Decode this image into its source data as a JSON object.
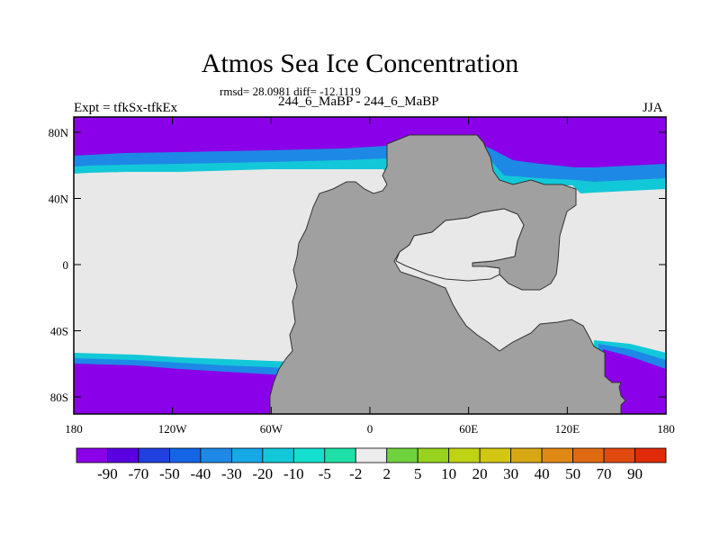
{
  "header": {
    "title": "Atmos Sea Ice Concentration",
    "stats": "rmsd= 28.0981 diff= -12.1119",
    "experiment": "Expt = tfkSx-tfkEx",
    "case": "244_6_MaBP - 244_6_MaBP",
    "season": "JJA"
  },
  "map": {
    "lon_ticks": [
      "180",
      "120W",
      "60W",
      "0",
      "60E",
      "120E",
      "180"
    ],
    "lat_ticks": [
      "80N",
      "40N",
      "0",
      "40S",
      "80S"
    ],
    "colors": {
      "land": "#a0a0a0",
      "neutral": "#e8e8e8",
      "strong_negative": "#8a00e8",
      "mid_negative": "#1e88e6",
      "weak_negative": "#12c8d8"
    }
  },
  "colorbar": {
    "labels": [
      "-90",
      "-70",
      "-50",
      "-40",
      "-30",
      "-20",
      "-10",
      "-5",
      "-2",
      "2",
      "5",
      "10",
      "20",
      "30",
      "40",
      "50",
      "70",
      "90"
    ],
    "colors": [
      "#8a00e8",
      "#5a00e0",
      "#2040e0",
      "#1466e6",
      "#1e88e6",
      "#17a8e6",
      "#12c8d8",
      "#14e0d0",
      "#1ee0a8",
      "#ececec",
      "#6ed23c",
      "#96d21e",
      "#c0d214",
      "#d2c814",
      "#d8a814",
      "#e08814",
      "#e06a14",
      "#e04a10",
      "#e02a0a"
    ]
  }
}
